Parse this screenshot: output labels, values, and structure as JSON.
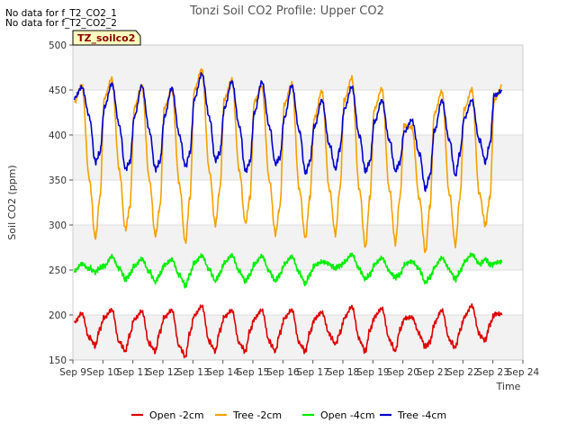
{
  "chart_data": {
    "type": "line",
    "title": "Tonzi Soil CO2 Profile: Upper CO2",
    "xlabel": "Time",
    "ylabel": "Soil CO2 (ppm)",
    "ylim": [
      150,
      500
    ],
    "yticks": [
      150,
      200,
      250,
      300,
      350,
      400,
      450,
      500
    ],
    "xlim": [
      9,
      24
    ],
    "x_unit": "day",
    "xtick_labels": [
      "Sep 9",
      "Sep 10",
      "Sep 11",
      "Sep 12",
      "Sep 13",
      "Sep 14",
      "Sep 15",
      "Sep 16",
      "Sep 17",
      "Sep 18",
      "Sep 19",
      "Sep 20",
      "Sep 21",
      "Sep 22",
      "Sep 23",
      "Sep 24"
    ],
    "shaded_bands": [
      [
        150,
        200
      ],
      [
        250,
        300
      ],
      [
        350,
        400
      ],
      [
        450,
        500
      ]
    ],
    "no_data_notes": [
      "No data for f_T2_CO2_1",
      "No data for f_T2_CO2_2"
    ],
    "site_label": "TZ_soilco2",
    "series": [
      {
        "name": "Open -2cm",
        "color": "#dd0000",
        "x": [
          9.05,
          9.3,
          9.55,
          9.75,
          9.9,
          10.05,
          10.3,
          10.55,
          10.75,
          10.9,
          11.05,
          11.3,
          11.55,
          11.75,
          11.9,
          12.05,
          12.3,
          12.55,
          12.75,
          12.9,
          13.05,
          13.3,
          13.55,
          13.75,
          13.9,
          14.05,
          14.3,
          14.55,
          14.75,
          14.9,
          15.05,
          15.3,
          15.55,
          15.75,
          15.9,
          16.05,
          16.3,
          16.55,
          16.75,
          16.9,
          17.05,
          17.3,
          17.55,
          17.75,
          17.9,
          18.05,
          18.3,
          18.55,
          18.75,
          18.9,
          19.05,
          19.3,
          19.55,
          19.75,
          19.9,
          20.05,
          20.3,
          20.55,
          20.75,
          20.9,
          21.05,
          21.3,
          21.55,
          21.75,
          21.9,
          22.05,
          22.3,
          22.55,
          22.75,
          22.9,
          23.05,
          23.3
        ],
        "values": [
          193,
          203,
          175,
          166,
          185,
          198,
          207,
          170,
          160,
          178,
          196,
          205,
          168,
          160,
          182,
          198,
          206,
          165,
          154,
          180,
          200,
          210,
          170,
          160,
          183,
          198,
          205,
          168,
          160,
          182,
          196,
          205,
          170,
          160,
          180,
          196,
          205,
          168,
          160,
          180,
          195,
          202,
          178,
          168,
          180,
          196,
          208,
          172,
          160,
          183,
          197,
          206,
          172,
          160,
          183,
          195,
          196,
          178,
          165,
          170,
          190,
          204,
          172,
          164,
          182,
          197,
          209,
          178,
          172,
          190,
          200,
          200
        ]
      },
      {
        "name": "Tree -2cm",
        "color": "#f5a000",
        "x": [
          9.05,
          9.3,
          9.55,
          9.75,
          9.9,
          10.05,
          10.3,
          10.55,
          10.75,
          10.9,
          11.05,
          11.3,
          11.55,
          11.75,
          11.9,
          12.05,
          12.3,
          12.55,
          12.75,
          12.9,
          13.05,
          13.3,
          13.55,
          13.75,
          13.9,
          14.05,
          14.3,
          14.55,
          14.75,
          14.9,
          15.05,
          15.3,
          15.55,
          15.75,
          15.9,
          16.05,
          16.3,
          16.55,
          16.75,
          16.9,
          17.05,
          17.3,
          17.55,
          17.75,
          17.9,
          18.05,
          18.3,
          18.55,
          18.75,
          18.9,
          19.05,
          19.3,
          19.55,
          19.75,
          19.9,
          20.05,
          20.3,
          20.55,
          20.75,
          20.9,
          21.05,
          21.3,
          21.55,
          21.75,
          21.9,
          22.05,
          22.3,
          22.55,
          22.75,
          22.9,
          23.05,
          23.3
        ],
        "values": [
          435,
          455,
          350,
          285,
          330,
          440,
          462,
          360,
          295,
          320,
          430,
          455,
          350,
          288,
          320,
          430,
          450,
          345,
          280,
          330,
          450,
          473,
          360,
          300,
          340,
          440,
          462,
          360,
          302,
          330,
          438,
          455,
          350,
          290,
          320,
          435,
          458,
          340,
          285,
          330,
          420,
          450,
          340,
          290,
          340,
          440,
          465,
          340,
          275,
          330,
          430,
          453,
          340,
          280,
          330,
          412,
          410,
          330,
          270,
          320,
          425,
          450,
          335,
          278,
          330,
          430,
          452,
          335,
          300,
          330,
          440,
          455
        ]
      },
      {
        "name": "Open -4cm",
        "color": "#00ee00",
        "x": [
          9.05,
          9.3,
          9.55,
          9.75,
          9.9,
          10.05,
          10.3,
          10.55,
          10.75,
          10.9,
          11.05,
          11.3,
          11.55,
          11.75,
          11.9,
          12.05,
          12.3,
          12.55,
          12.75,
          12.9,
          13.05,
          13.3,
          13.55,
          13.75,
          13.9,
          14.05,
          14.3,
          14.55,
          14.75,
          14.9,
          15.05,
          15.3,
          15.55,
          15.75,
          15.9,
          16.05,
          16.3,
          16.55,
          16.75,
          16.9,
          17.05,
          17.3,
          17.55,
          17.75,
          17.9,
          18.05,
          18.3,
          18.55,
          18.75,
          18.9,
          19.05,
          19.3,
          19.55,
          19.75,
          19.9,
          20.05,
          20.3,
          20.55,
          20.75,
          20.9,
          21.05,
          21.3,
          21.55,
          21.75,
          21.9,
          22.05,
          22.3,
          22.55,
          22.75,
          22.9,
          23.05,
          23.3
        ],
        "values": [
          250,
          258,
          252,
          248,
          252,
          255,
          266,
          252,
          240,
          245,
          255,
          263,
          248,
          237,
          245,
          256,
          262,
          244,
          233,
          245,
          258,
          266,
          250,
          238,
          246,
          258,
          266,
          248,
          238,
          245,
          256,
          265,
          248,
          238,
          245,
          256,
          264,
          246,
          235,
          245,
          254,
          258,
          256,
          252,
          255,
          258,
          266,
          250,
          240,
          245,
          255,
          262,
          248,
          242,
          245,
          255,
          258,
          250,
          236,
          242,
          252,
          262,
          250,
          240,
          248,
          258,
          266,
          256,
          262,
          256,
          257,
          258
        ]
      },
      {
        "name": "Tree -4cm",
        "color": "#0000cc",
        "x": [
          9.05,
          9.3,
          9.55,
          9.75,
          9.9,
          10.05,
          10.3,
          10.55,
          10.75,
          10.9,
          11.05,
          11.3,
          11.55,
          11.75,
          11.9,
          12.05,
          12.3,
          12.55,
          12.75,
          12.9,
          13.05,
          13.3,
          13.55,
          13.75,
          13.9,
          14.05,
          14.3,
          14.55,
          14.75,
          14.9,
          15.05,
          15.3,
          15.55,
          15.75,
          15.9,
          16.05,
          16.3,
          16.55,
          16.75,
          16.9,
          17.05,
          17.3,
          17.55,
          17.75,
          17.9,
          18.05,
          18.3,
          18.55,
          18.75,
          18.9,
          19.05,
          19.3,
          19.55,
          19.75,
          19.9,
          20.05,
          20.3,
          20.55,
          20.75,
          20.9,
          21.05,
          21.3,
          21.55,
          21.75,
          21.9,
          22.05,
          22.3,
          22.55,
          22.75,
          22.9,
          23.05,
          23.3
        ],
        "values": [
          440,
          452,
          420,
          370,
          380,
          430,
          456,
          410,
          362,
          370,
          420,
          454,
          405,
          362,
          370,
          420,
          452,
          400,
          365,
          380,
          440,
          468,
          420,
          372,
          380,
          430,
          460,
          410,
          360,
          370,
          425,
          460,
          410,
          368,
          375,
          420,
          456,
          405,
          358,
          370,
          410,
          440,
          390,
          362,
          385,
          430,
          455,
          400,
          360,
          370,
          415,
          440,
          395,
          360,
          370,
          405,
          418,
          380,
          340,
          355,
          405,
          440,
          395,
          355,
          380,
          420,
          440,
          395,
          370,
          390,
          445,
          450
        ]
      }
    ]
  }
}
